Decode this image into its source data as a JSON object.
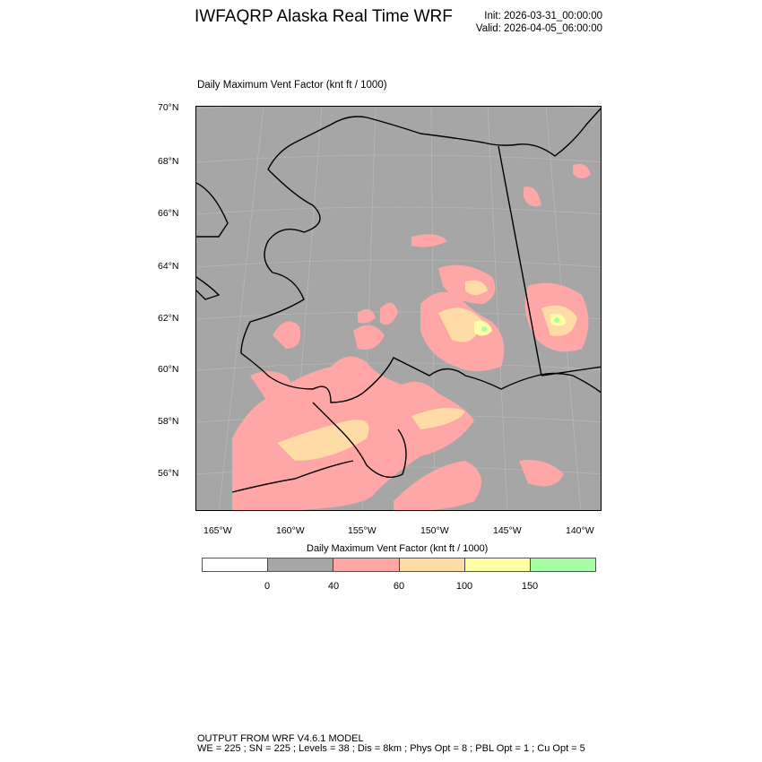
{
  "header": {
    "title": "IWFAQRP Alaska Real Time WRF",
    "init": "Init: 2026-03-31_00:00:00",
    "valid": "Valid: 2026-04-05_06:00:00"
  },
  "map": {
    "subtitle": "Daily Maximum Vent Factor   (knt ft / 1000)",
    "lat_labels": [
      "70°N",
      "68°N",
      "66°N",
      "64°N",
      "62°N",
      "60°N",
      "58°N",
      "56°N"
    ],
    "lon_labels": [
      "165°W",
      "160°W",
      "155°W",
      "150°W",
      "145°W",
      "140°W"
    ],
    "colors": {
      "background": "#a6a6a6",
      "land_lt40": "#a6a6a6",
      "c40_60": "#ffa6a6",
      "c60_100": "#ffdca6",
      "c100_150": "#ffffa6",
      "c150_plus": "#a6ffa6",
      "coast": "#000000"
    }
  },
  "colorbar": {
    "title": "Daily Maximum Vent Factor  (knt ft / 1000)",
    "colors": [
      "#ffffff",
      "#a6a6a6",
      "#ffa6a6",
      "#ffdca6",
      "#ffffa6",
      "#a6ffa6"
    ],
    "labels": [
      "0",
      "40",
      "60",
      "100",
      "150"
    ]
  },
  "footer": {
    "line1": "OUTPUT FROM WRF V4.6.1 MODEL",
    "line2": "WE = 225 ; SN = 225 ; Levels = 38 ; Dis = 8km ; Phys Opt = 8 ; PBL Opt = 1 ; Cu Opt = 5"
  }
}
